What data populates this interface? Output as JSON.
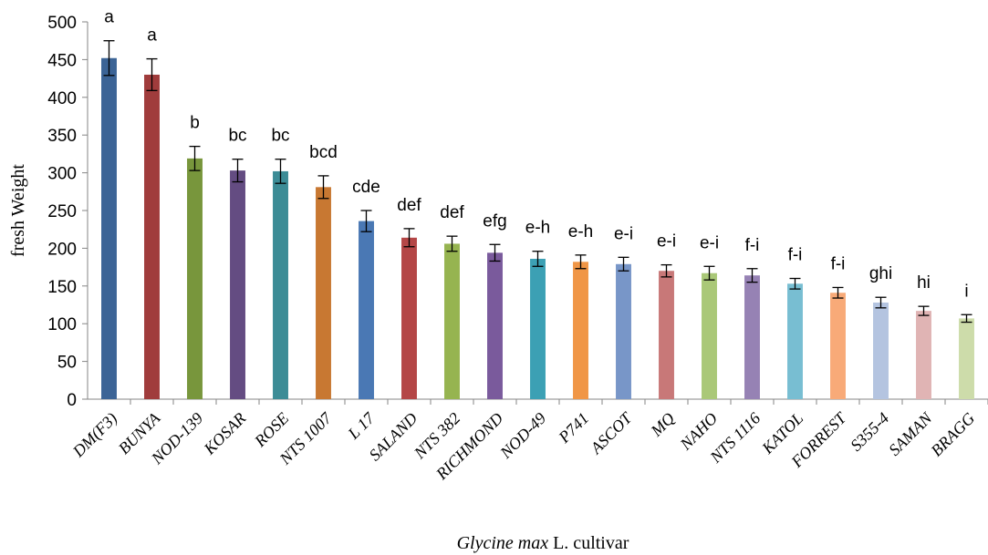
{
  "chart_data": {
    "type": "bar",
    "ylabel": "fresh Weight",
    "xlabel_italic": "Glycine max",
    "xlabel_rest": " L. cultivar",
    "ylim": [
      0,
      500
    ],
    "yticks": [
      0,
      50,
      100,
      150,
      200,
      250,
      300,
      350,
      400,
      450,
      500
    ],
    "grid": false,
    "categories": [
      "DM(F3)",
      "BUNYA",
      "NOD-139",
      "KOSAR",
      "ROSE",
      "NTS 1007",
      "L 17",
      "SALAND",
      "NTS 382",
      "RICHMOND",
      "NOD-49",
      "P741",
      "ASCOT",
      "MQ",
      "NAHO",
      "NTS 1116",
      "KATOL",
      "FORREST",
      "S355-4",
      "SAMAN",
      "BRAGG"
    ],
    "values": [
      452,
      430,
      319,
      303,
      302,
      281,
      236,
      214,
      206,
      194,
      186,
      182,
      179,
      170,
      167,
      164,
      153,
      141,
      128,
      117,
      107
    ],
    "errors": [
      23,
      21,
      16,
      15,
      16,
      15,
      14,
      12,
      10,
      11,
      10,
      9,
      9,
      8,
      9,
      9,
      7,
      7,
      7,
      6,
      5
    ],
    "labels": [
      "a",
      "a",
      "b",
      "bc",
      "bc",
      "bcd",
      "cde",
      "def",
      "def",
      "efg",
      "e-h",
      "e-h",
      "e-i",
      "e-i",
      "e-i",
      "f-i",
      "f-i",
      "f-i",
      "ghi",
      "hi",
      "i"
    ],
    "colors": [
      "#3c6496",
      "#a03c3c",
      "#78963c",
      "#644c82",
      "#3c8c96",
      "#c87832",
      "#4a78b4",
      "#b44646",
      "#96b450",
      "#7a5a9c",
      "#3ca0b4",
      "#f09646",
      "#7896c8",
      "#c87878",
      "#aac878",
      "#9682b4",
      "#78bed2",
      "#f8aa78",
      "#b4c4e0",
      "#e0b4b4",
      "#cddcaa"
    ]
  }
}
